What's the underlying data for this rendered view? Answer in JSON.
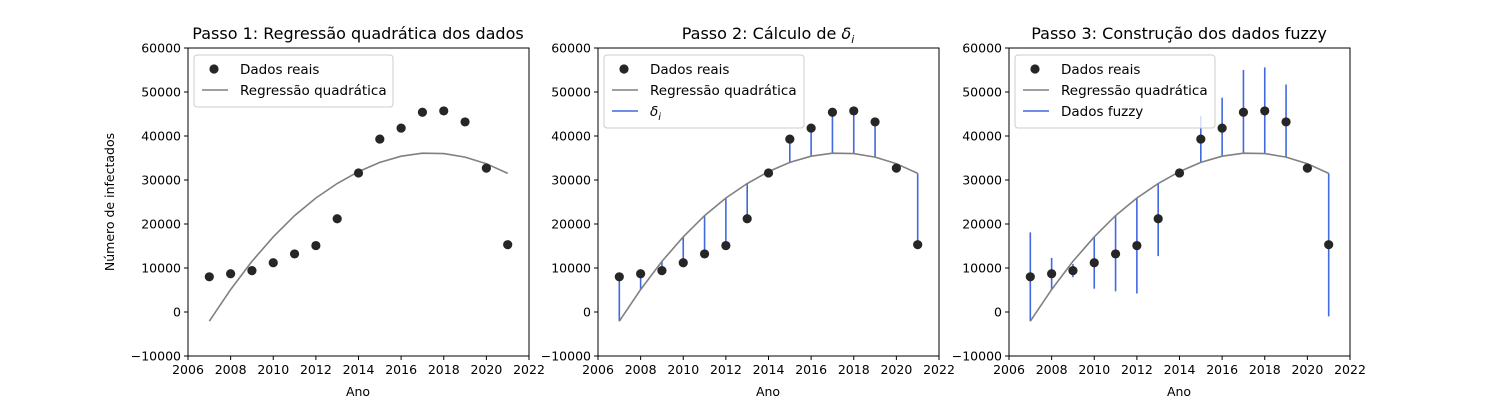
{
  "colors": {
    "points": "#262626",
    "regression": "#808080",
    "fuzzy": "#4169e1",
    "axes": "#000000",
    "legend_border": "#cccccc"
  },
  "chart_data": [
    {
      "type": "scatter",
      "title": "Passo 1: Regressão quadrática dos dados",
      "xlabel": "Ano",
      "ylabel": "Número de infectados",
      "xlim": [
        2006,
        2022
      ],
      "ylim": [
        -10000,
        60000
      ],
      "xticks": [
        "2006",
        "2008",
        "2010",
        "2012",
        "2014",
        "2016",
        "2018",
        "2020",
        "2022"
      ],
      "yticks": [
        "−10000",
        "0",
        "10000",
        "20000",
        "30000",
        "40000",
        "50000",
        "60000"
      ],
      "legend_position": "top-left",
      "grid": false,
      "legend": [
        "Dados reais",
        "Regressão quadrática"
      ],
      "x": [
        2007,
        2008,
        2009,
        2010,
        2011,
        2012,
        2013,
        2014,
        2015,
        2016,
        2017,
        2018,
        2019,
        2020,
        2021
      ],
      "series": [
        {
          "name": "Dados reais",
          "kind": "points",
          "values": [
            8000,
            8700,
            9400,
            11200,
            13200,
            15100,
            21200,
            31600,
            39300,
            41800,
            45400,
            45700,
            43200,
            32700,
            15300
          ]
        },
        {
          "name": "Regressão quadrática",
          "kind": "line",
          "values": [
            -2100,
            5100,
            11500,
            17100,
            21900,
            25900,
            29200,
            31900,
            34000,
            35400,
            36100,
            36000,
            35200,
            33700,
            31500
          ]
        }
      ]
    },
    {
      "type": "scatter",
      "title": "Passo 2: Cálculo de ",
      "title_symbol": "δ",
      "title_sub": "i",
      "xlabel": "Ano",
      "ylabel": "",
      "xlim": [
        2006,
        2022
      ],
      "ylim": [
        -10000,
        60000
      ],
      "xticks": [
        "2006",
        "2008",
        "2010",
        "2012",
        "2014",
        "2016",
        "2018",
        "2020",
        "2022"
      ],
      "yticks": [
        "−10000",
        "0",
        "10000",
        "20000",
        "30000",
        "40000",
        "50000",
        "60000"
      ],
      "legend_position": "top-left",
      "grid": false,
      "legend": [
        "Dados reais",
        "Regressão quadrática",
        "δ"
      ],
      "legend_sub": "i",
      "x": [
        2007,
        2008,
        2009,
        2010,
        2011,
        2012,
        2013,
        2014,
        2015,
        2016,
        2017,
        2018,
        2019,
        2020,
        2021
      ],
      "series": [
        {
          "name": "Dados reais",
          "kind": "points",
          "values": [
            8000,
            8700,
            9400,
            11200,
            13200,
            15100,
            21200,
            31600,
            39300,
            41800,
            45400,
            45700,
            43200,
            32700,
            15300
          ]
        },
        {
          "name": "Regressão quadrática",
          "kind": "line",
          "values": [
            -2100,
            5100,
            11500,
            17100,
            21900,
            25900,
            29200,
            31900,
            34000,
            35400,
            36100,
            36000,
            35200,
            33700,
            31500
          ]
        }
      ],
      "segments": [
        [
          -2100,
          8000
        ],
        [
          5100,
          8700
        ],
        [
          11500,
          9400
        ],
        [
          17100,
          11200
        ],
        [
          21900,
          13200
        ],
        [
          25900,
          15100
        ],
        [
          29200,
          21200
        ],
        [
          31900,
          31600
        ],
        [
          34000,
          39300
        ],
        [
          35400,
          41800
        ],
        [
          36100,
          45400
        ],
        [
          36000,
          45700
        ],
        [
          35200,
          43200
        ],
        [
          33700,
          32700
        ],
        [
          31500,
          15300
        ]
      ]
    },
    {
      "type": "scatter",
      "title": "Passo 3: Construção dos dados fuzzy",
      "xlabel": "Ano",
      "ylabel": "",
      "xlim": [
        2006,
        2022
      ],
      "ylim": [
        -10000,
        60000
      ],
      "xticks": [
        "2006",
        "2008",
        "2010",
        "2012",
        "2014",
        "2016",
        "2018",
        "2020",
        "2022"
      ],
      "yticks": [
        "−10000",
        "0",
        "10000",
        "20000",
        "30000",
        "40000",
        "50000",
        "60000"
      ],
      "legend_position": "top-left",
      "grid": false,
      "legend": [
        "Dados reais",
        "Regressão quadrática",
        "Dados fuzzy"
      ],
      "x": [
        2007,
        2008,
        2009,
        2010,
        2011,
        2012,
        2013,
        2014,
        2015,
        2016,
        2017,
        2018,
        2019,
        2020,
        2021
      ],
      "series": [
        {
          "name": "Dados reais",
          "kind": "points",
          "values": [
            8000,
            8700,
            9400,
            11200,
            13200,
            15100,
            21200,
            31600,
            39300,
            41800,
            45400,
            45700,
            43200,
            32700,
            15300
          ]
        },
        {
          "name": "Regressão quadrática",
          "kind": "line",
          "values": [
            -2100,
            5100,
            11500,
            17100,
            21900,
            25900,
            29200,
            31900,
            34000,
            35400,
            36100,
            36000,
            35200,
            33700,
            31500
          ]
        }
      ],
      "segments": [
        [
          -2100,
          18100
        ],
        [
          5100,
          12300
        ],
        [
          7900,
          10900
        ],
        [
          5300,
          17100
        ],
        [
          4700,
          21900
        ],
        [
          4200,
          25900
        ],
        [
          12700,
          29200
        ],
        [
          31300,
          31900
        ],
        [
          34000,
          44600
        ],
        [
          35400,
          48700
        ],
        [
          36100,
          55000
        ],
        [
          36000,
          55600
        ],
        [
          35200,
          51700
        ],
        [
          31700,
          33700
        ],
        [
          -1000,
          31500
        ]
      ]
    }
  ]
}
